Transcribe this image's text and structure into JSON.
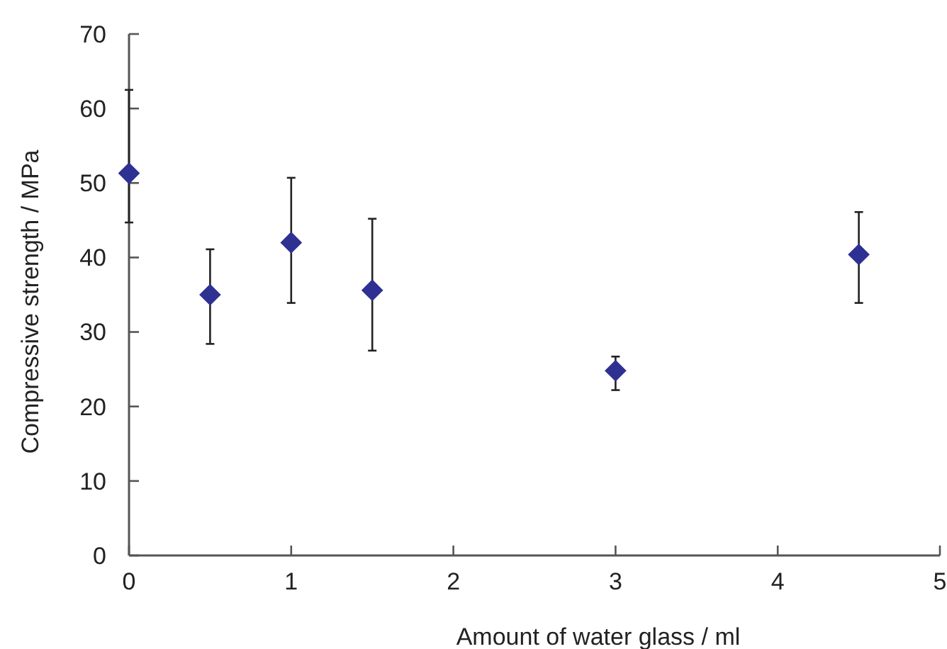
{
  "chart_data": {
    "type": "scatter",
    "xlabel": "Amount of water glass / ml",
    "ylabel": "Compressive strength / MPa",
    "x": [
      0,
      0.5,
      1,
      1.5,
      3,
      4.5
    ],
    "series": [
      {
        "color": "#2e3192",
        "values": [
          51.3,
          35.0,
          42.0,
          35.6,
          24.8,
          40.4
        ],
        "errors": [
          [
            44.7,
            62.5
          ],
          [
            28.4,
            41.1
          ],
          [
            33.9,
            50.7
          ],
          [
            27.5,
            45.2
          ],
          [
            22.2,
            26.7
          ],
          [
            33.9,
            46.1
          ]
        ]
      }
    ],
    "xlim": [
      0,
      5
    ],
    "xticks": [
      0,
      1,
      2,
      3,
      4,
      5
    ],
    "ylim": [
      0,
      70
    ],
    "yticks": [
      0,
      10,
      20,
      30,
      40,
      50,
      60,
      70
    ],
    "marker": "diamond",
    "grid": false
  }
}
